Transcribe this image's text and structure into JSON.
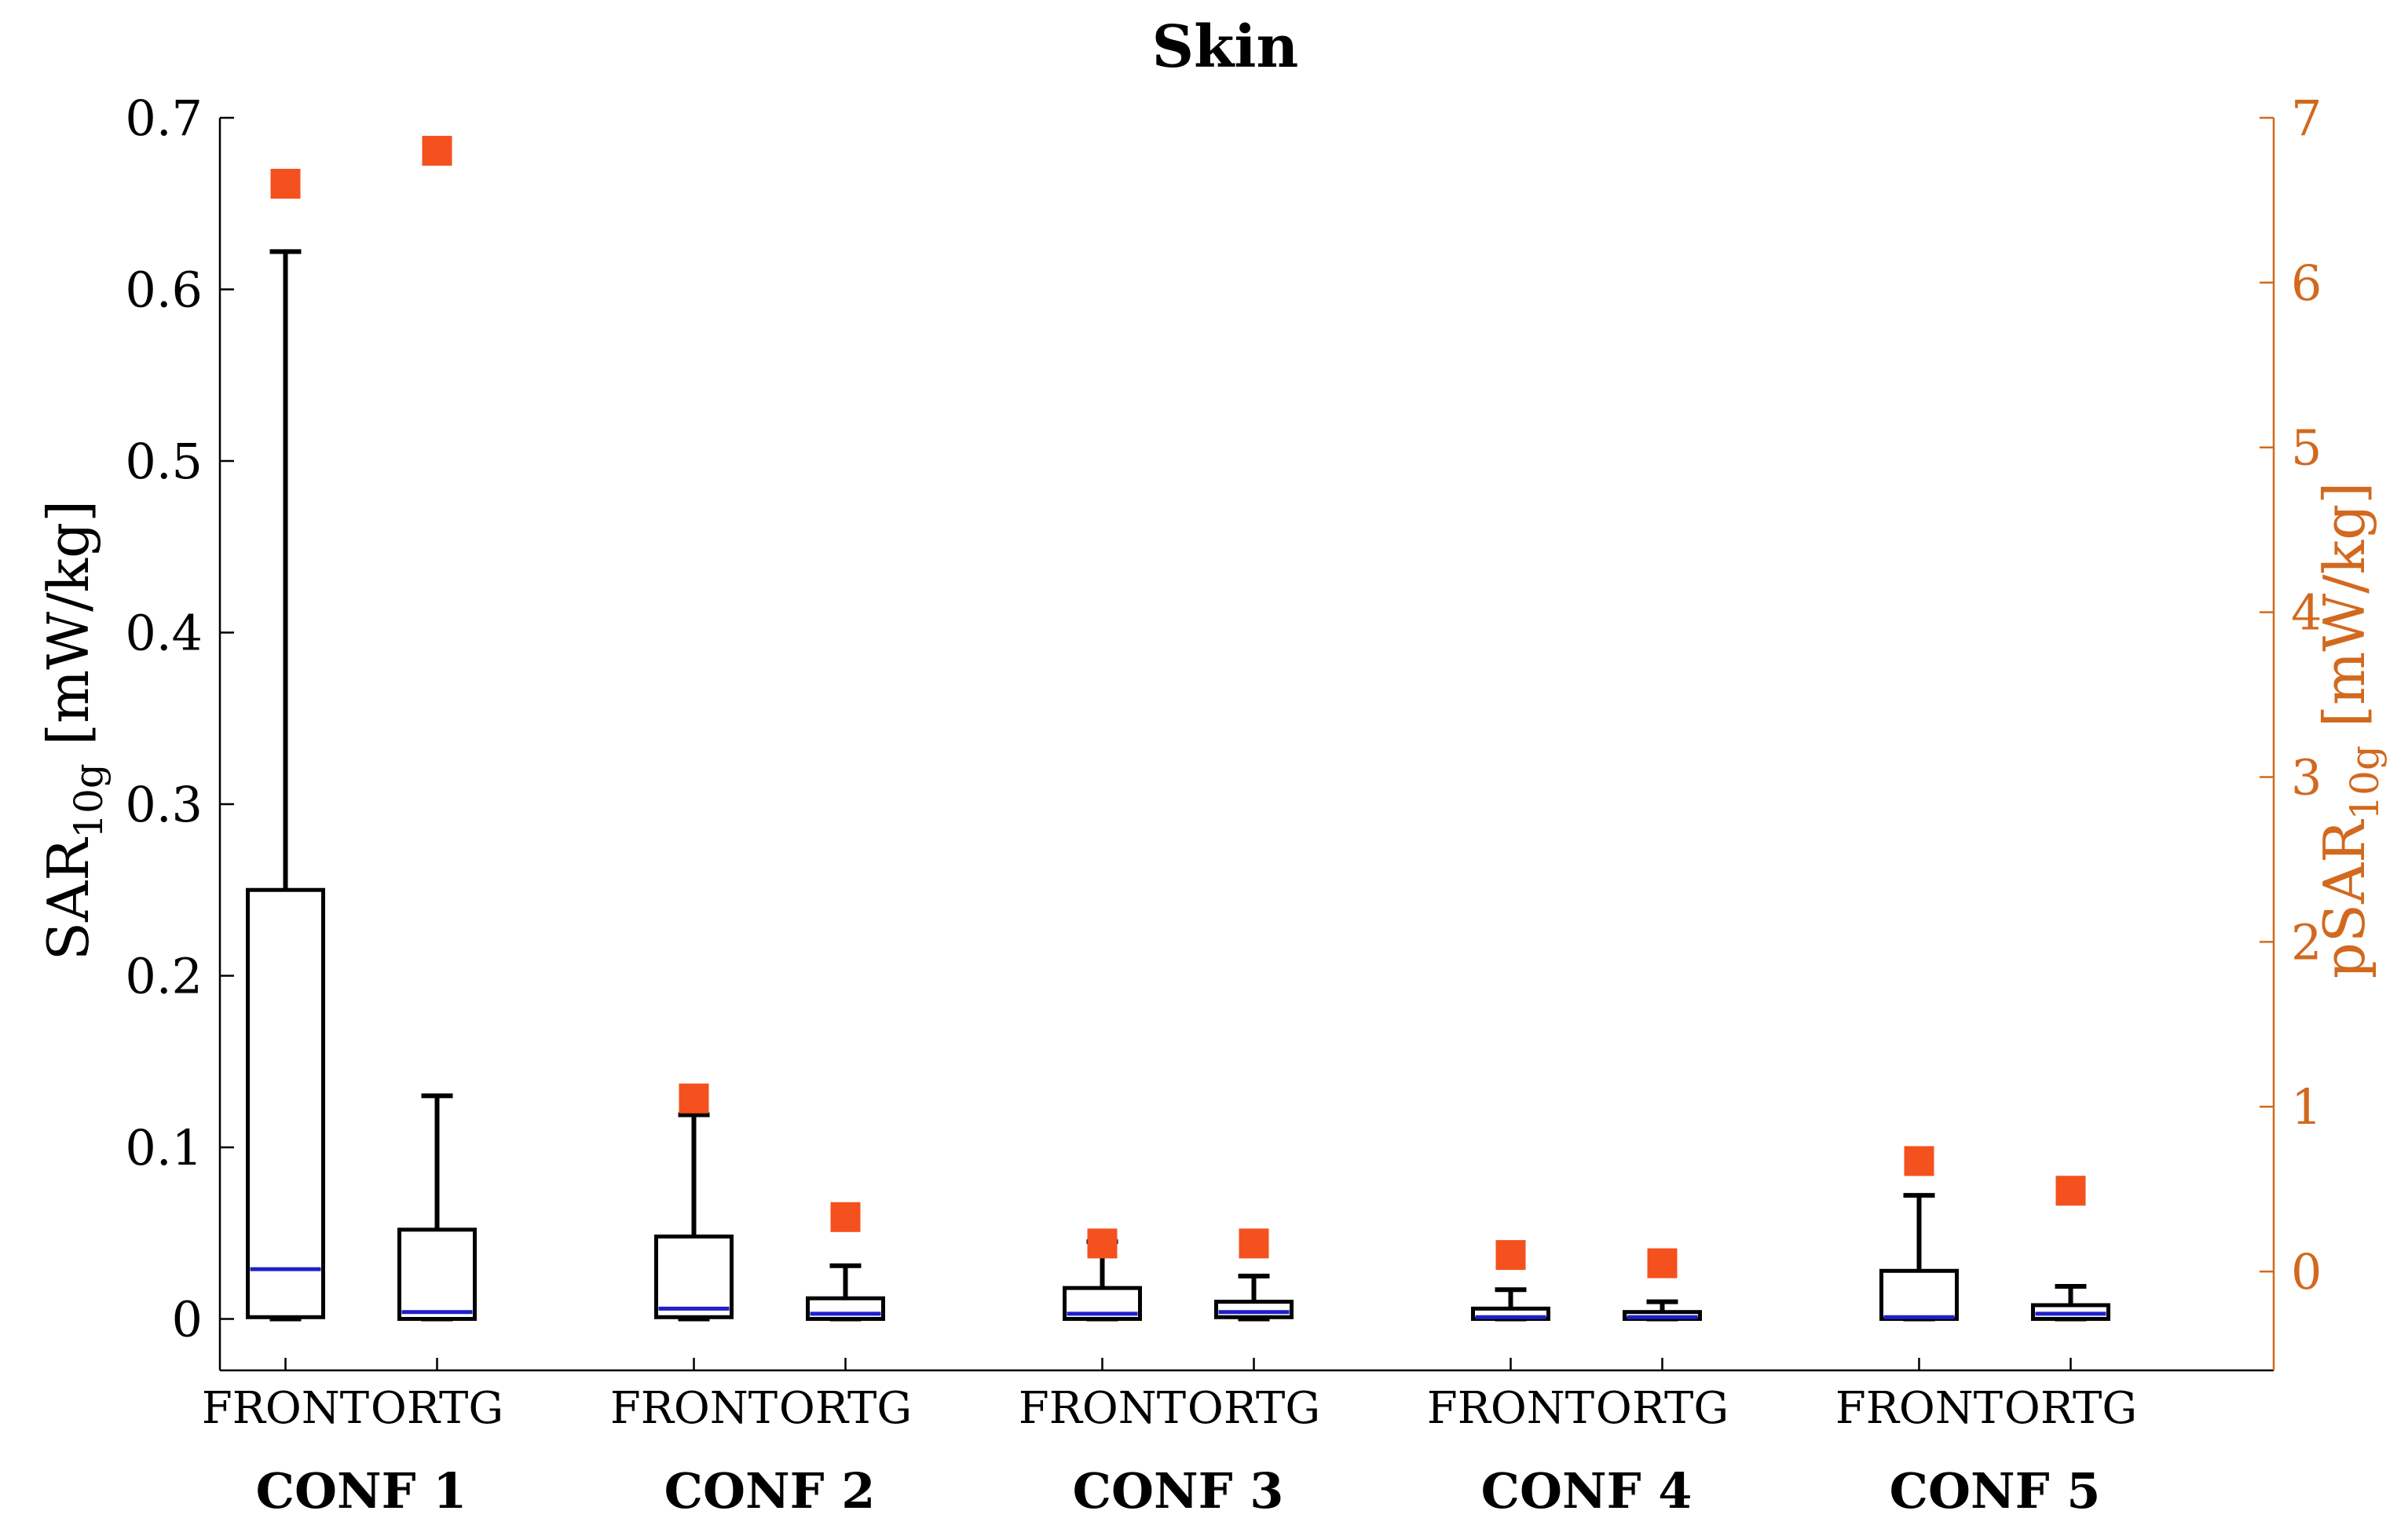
{
  "chart_data": {
    "type": "box",
    "title": "Skin",
    "ylabel_left": {
      "main": "SAR",
      "sub": "10g",
      "unit": " [mW/kg]"
    },
    "ylabel_right": {
      "main": "pSAR",
      "sub": "10g",
      "unit": " [mW/kg]"
    },
    "ylim_left": [
      -0.03,
      0.7
    ],
    "ylim_right": [
      -0.6,
      7.0
    ],
    "yticks_left": [
      "0",
      "0.1",
      "0.2",
      "0.3",
      "0.4",
      "0.5",
      "0.6",
      "0.7"
    ],
    "yticks_right": [
      "0",
      "1",
      "2",
      "3",
      "4",
      "5",
      "6",
      "7"
    ],
    "groups": [
      "CONF 1",
      "CONF 2",
      "CONF 3",
      "CONF 4",
      "CONF 5"
    ],
    "positions": [
      "FRONT",
      "ORTG"
    ],
    "colors": {
      "box": "#000000",
      "median": "#1f1fcc",
      "marker": "#f4511e",
      "right_axis": "#d2691e"
    },
    "boxes": [
      {
        "group": "CONF 1",
        "position": "FRONT",
        "min": 0.0,
        "q1": 0.001,
        "median": 0.029,
        "q3": 0.25,
        "max": 0.622,
        "psar": 6.6
      },
      {
        "group": "CONF 1",
        "position": "ORTG",
        "min": 0.0,
        "q1": 0.0,
        "median": 0.004,
        "q3": 0.052,
        "max": 0.13,
        "psar": 6.8
      },
      {
        "group": "CONF 2",
        "position": "FRONT",
        "min": 0.0,
        "q1": 0.001,
        "median": 0.006,
        "q3": 0.048,
        "max": 0.119,
        "psar": 1.05
      },
      {
        "group": "CONF 2",
        "position": "ORTG",
        "min": 0.0,
        "q1": 0.0,
        "median": 0.003,
        "q3": 0.012,
        "max": 0.031,
        "psar": 0.33
      },
      {
        "group": "CONF 3",
        "position": "FRONT",
        "min": 0.0,
        "q1": 0.0,
        "median": 0.003,
        "q3": 0.018,
        "max": 0.045,
        "psar": 0.17
      },
      {
        "group": "CONF 3",
        "position": "ORTG",
        "min": 0.0,
        "q1": 0.001,
        "median": 0.004,
        "q3": 0.01,
        "max": 0.025,
        "psar": 0.17
      },
      {
        "group": "CONF 4",
        "position": "FRONT",
        "min": 0.0,
        "q1": 0.0,
        "median": 0.001,
        "q3": 0.006,
        "max": 0.017,
        "psar": 0.1
      },
      {
        "group": "CONF 4",
        "position": "ORTG",
        "min": 0.0,
        "q1": 0.0,
        "median": 0.001,
        "q3": 0.004,
        "max": 0.01,
        "psar": 0.05
      },
      {
        "group": "CONF 5",
        "position": "FRONT",
        "min": 0.0,
        "q1": 0.0,
        "median": 0.001,
        "q3": 0.028,
        "max": 0.072,
        "psar": 0.67
      },
      {
        "group": "CONF 5",
        "position": "ORTG",
        "min": 0.0,
        "q1": 0.0,
        "median": 0.003,
        "q3": 0.008,
        "max": 0.019,
        "psar": 0.49
      }
    ],
    "grid": false,
    "legend": "none"
  }
}
